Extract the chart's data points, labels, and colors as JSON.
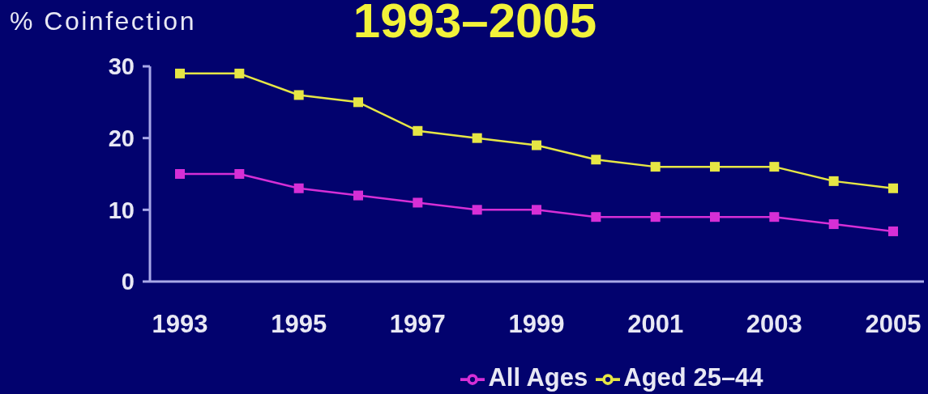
{
  "chart_data": {
    "type": "line",
    "title": "1993–2005",
    "ylabel": "% Coinfection",
    "categories": [
      "1993",
      null,
      "1995",
      null,
      "1997",
      null,
      "1999",
      null,
      "2001",
      null,
      "2003",
      null,
      "2005"
    ],
    "series": [
      {
        "name": "All Ages",
        "color": "#d62fd6",
        "values": [
          15,
          15,
          13,
          12,
          11,
          10,
          10,
          9,
          9,
          9,
          9,
          8,
          7
        ]
      },
      {
        "name": "Aged 25–44",
        "color": "#e6e645",
        "values": [
          29,
          29,
          26,
          25,
          21,
          20,
          19,
          17,
          16,
          16,
          16,
          14,
          13
        ]
      }
    ],
    "ylim": [
      0,
      30
    ],
    "yticks": [
      0,
      10,
      20,
      30
    ],
    "legend": "bottom",
    "marker": "square",
    "line_style": "solid"
  }
}
